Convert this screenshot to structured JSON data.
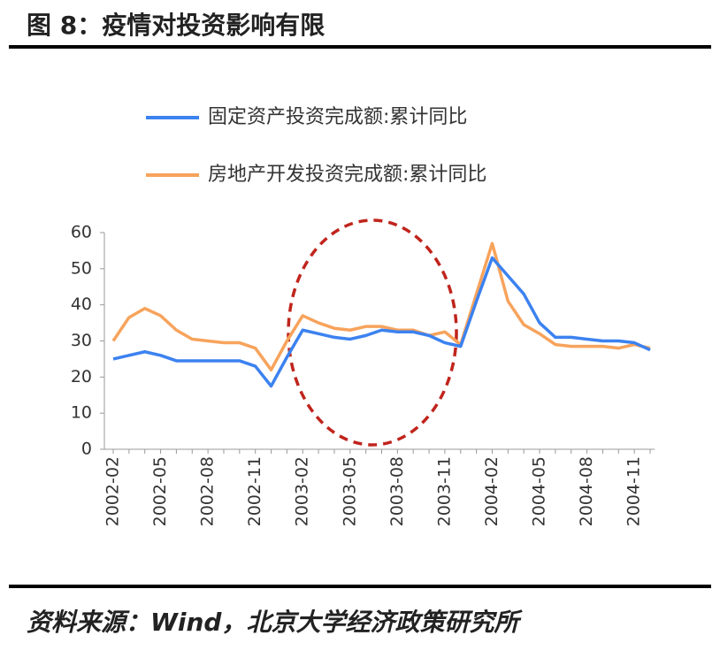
{
  "chart_data": {
    "type": "line",
    "title": "图 8：疫情对投资影响有限",
    "source": "资料来源：Wind，北京大学经济政策研究所",
    "categories": [
      "2002-02",
      null,
      null,
      "2002-05",
      null,
      null,
      "2002-08",
      null,
      null,
      "2002-11",
      null,
      null,
      "2003-02",
      null,
      null,
      "2003-05",
      null,
      null,
      "2003-08",
      null,
      null,
      "2003-11",
      null,
      null,
      "2004-02",
      null,
      null,
      "2004-05",
      null,
      null,
      "2004-08",
      null,
      null,
      "2004-11",
      null
    ],
    "series": [
      {
        "name": "固定资产投资完成额:累计同比",
        "color": "#3c82f0",
        "values": [
          25,
          26,
          27,
          26,
          24.5,
          24.5,
          24.5,
          24.5,
          24.5,
          23,
          17.5,
          25.5,
          33,
          32,
          31,
          30.5,
          31.5,
          33,
          32.5,
          32.5,
          31.5,
          29.5,
          28.5,
          41,
          53,
          48,
          43,
          35,
          31,
          31,
          30.5,
          30,
          30,
          29.5,
          27.5
        ]
      },
      {
        "name": "房地产开发投资完成额:累计同比",
        "color": "#f7a35c",
        "values": [
          30,
          36.5,
          39,
          37,
          33,
          30.5,
          30,
          29.5,
          29.5,
          28,
          22,
          30,
          37,
          35,
          33.5,
          33,
          34,
          34,
          33,
          33,
          31.5,
          32.5,
          29,
          43,
          57,
          41,
          34.5,
          32,
          29,
          28.5,
          28.5,
          28.5,
          28,
          29,
          28
        ]
      }
    ],
    "ylim": [
      0,
      60
    ],
    "yticks": [
      0,
      10,
      20,
      30,
      40,
      50,
      60
    ]
  }
}
